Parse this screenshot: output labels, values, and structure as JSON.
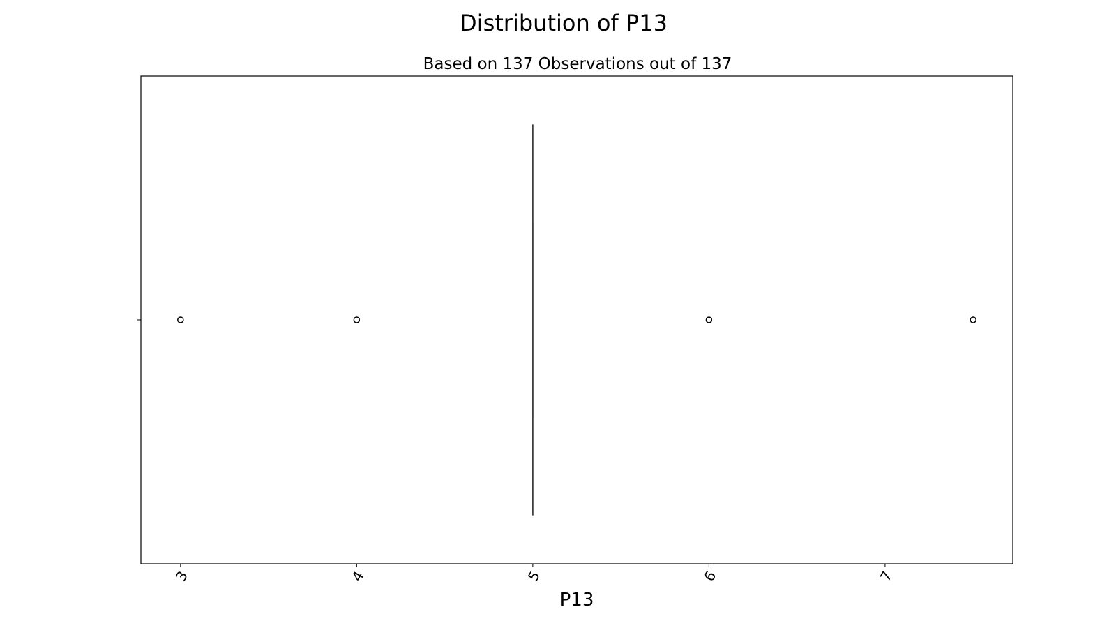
{
  "chart_data": {
    "type": "box",
    "title": "Distribution of P13",
    "subtitle": "Based on 137 Observations out of 137",
    "xlabel": "P13",
    "xlim": [
      2.775,
      7.725
    ],
    "xticks": [
      3,
      4,
      5,
      6,
      7
    ],
    "xtick_labels": [
      "3",
      "4",
      "5",
      "6",
      "7"
    ],
    "box": {
      "q1": 5,
      "median": 5,
      "q3": 5,
      "whisker_low": 5,
      "whisker_high": 5
    },
    "outliers": [
      3,
      4,
      6,
      7.5
    ],
    "colors": {
      "line": "#3f3f3f",
      "frame": "#000000",
      "background": "#ffffff"
    }
  }
}
